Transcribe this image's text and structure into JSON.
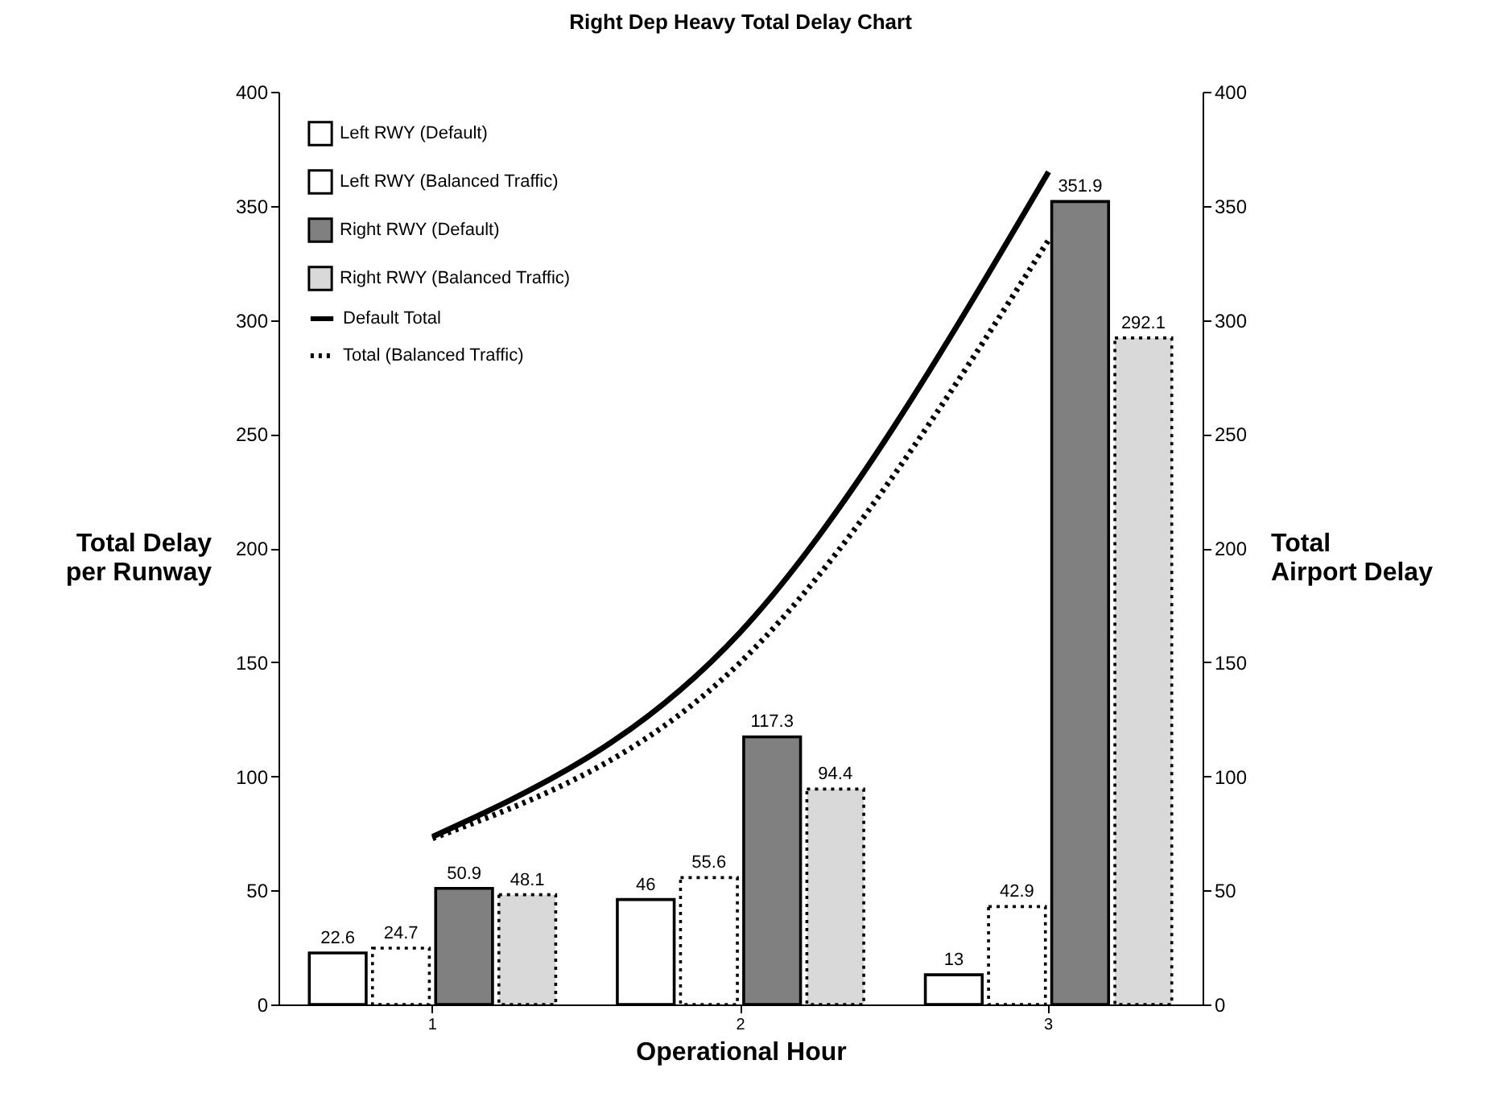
{
  "chart_data": {
    "type": "bar",
    "title": "Right Dep Heavy Total Delay Chart",
    "xlabel": "Operational Hour",
    "ylabel": "Total Delay per Runway",
    "y2label": "Total Airport Delay",
    "categories": [
      "1",
      "2",
      "3"
    ],
    "series": [
      {
        "name": "Left RWY (Default)",
        "color": "#ffffff",
        "line_style": "solid",
        "values": [
          22.6,
          46,
          13
        ],
        "value_labels": [
          "22.6",
          "46",
          "13"
        ]
      },
      {
        "name": "Left RWY (Balanced Traffic)",
        "color": "#ffffff",
        "line_style": "dotted",
        "values": [
          24.7,
          55.6,
          42.9
        ],
        "value_labels": [
          "24.7",
          "55.6",
          "42.9"
        ]
      },
      {
        "name": "Right RWY (Default)",
        "color": "#808080",
        "line_style": "solid",
        "values": [
          50.9,
          117.3,
          351.9
        ],
        "value_labels": [
          "50.9",
          "117.3",
          "351.9"
        ]
      },
      {
        "name": "Right RWY (Balanced Traffic)",
        "color": "#d9d9d9",
        "line_style": "dotted",
        "values": [
          48.1,
          94.4,
          292.1
        ],
        "value_labels": [
          "48.1",
          "94.4",
          "292.1"
        ]
      },
      {
        "name": "Default Total",
        "type": "line",
        "axis": "y2",
        "color": "#000000",
        "line_style": "solid",
        "values": [
          73.5,
          163.3,
          364.9
        ]
      },
      {
        "name": "Total (Balanced Traffic)",
        "type": "line",
        "axis": "y2",
        "color": "#000000",
        "line_style": "dotted",
        "values": [
          72.8,
          150,
          335
        ]
      }
    ],
    "ylim": [
      0,
      400
    ],
    "yticks": [
      0,
      50,
      100,
      150,
      200,
      250,
      300,
      350,
      400
    ],
    "y2lim": [
      0,
      400
    ],
    "y2ticks": [
      0,
      50,
      100,
      150,
      200,
      250,
      300,
      350,
      400
    ],
    "legend": "top left",
    "grid": false
  }
}
